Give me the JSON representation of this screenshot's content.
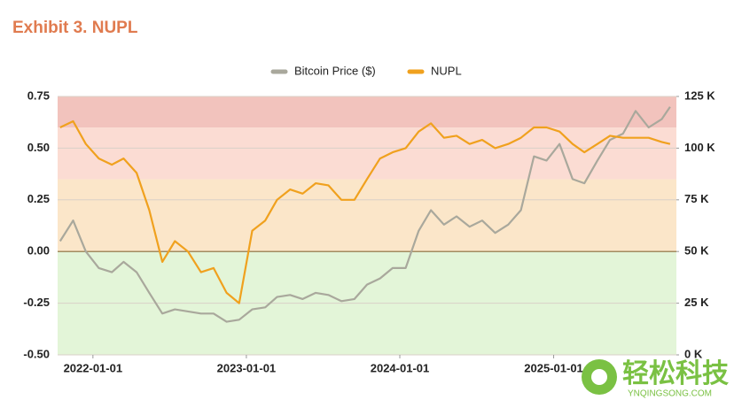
{
  "chart_data": {
    "type": "line",
    "title": "Exhibit 3. NUPL",
    "x": [
      "2021-10-15",
      "2021-11-15",
      "2021-12-15",
      "2022-01-15",
      "2022-02-15",
      "2022-03-15",
      "2022-04-15",
      "2022-05-15",
      "2022-06-15",
      "2022-07-15",
      "2022-08-15",
      "2022-09-15",
      "2022-10-15",
      "2022-11-15",
      "2022-12-15",
      "2023-01-15",
      "2023-02-15",
      "2023-03-15",
      "2023-04-15",
      "2023-05-15",
      "2023-06-15",
      "2023-07-15",
      "2023-08-15",
      "2023-09-15",
      "2023-10-15",
      "2023-11-15",
      "2023-12-15",
      "2024-01-15",
      "2024-02-15",
      "2024-03-15",
      "2024-04-15",
      "2024-05-15",
      "2024-06-15",
      "2024-07-15",
      "2024-08-15",
      "2024-09-15",
      "2024-10-15",
      "2024-11-15",
      "2024-12-15",
      "2025-01-15",
      "2025-02-15",
      "2025-03-15",
      "2025-04-15",
      "2025-05-15",
      "2025-06-15",
      "2025-07-15",
      "2025-08-15",
      "2025-09-15",
      "2025-10-05"
    ],
    "series": [
      {
        "name": "Bitcoin Price ($)",
        "color": "#a9a89c",
        "axis": "y2",
        "values": [
          55000,
          65000,
          50000,
          42000,
          40000,
          45000,
          40000,
          30000,
          20000,
          22000,
          21000,
          20000,
          20000,
          16000,
          17000,
          22000,
          23000,
          28000,
          29000,
          27000,
          30000,
          29000,
          26000,
          27000,
          34000,
          37000,
          42000,
          42000,
          60000,
          70000,
          63000,
          67000,
          62000,
          65000,
          59000,
          63000,
          70000,
          96000,
          94000,
          102000,
          85000,
          83000,
          94000,
          104000,
          107000,
          118000,
          110000,
          114000,
          120000
        ]
      },
      {
        "name": "NUPL",
        "color": "#f0a11e",
        "values": [
          0.6,
          0.63,
          0.52,
          0.45,
          0.42,
          0.45,
          0.38,
          0.2,
          -0.05,
          0.05,
          0,
          -0.1,
          -0.08,
          -0.2,
          -0.25,
          0.1,
          0.15,
          0.25,
          0.3,
          0.28,
          0.33,
          0.32,
          0.25,
          0.25,
          0.35,
          0.45,
          0.48,
          0.5,
          0.58,
          0.62,
          0.55,
          0.56,
          0.52,
          0.54,
          0.5,
          0.52,
          0.55,
          0.6,
          0.6,
          0.58,
          0.52,
          0.48,
          0.52,
          0.56,
          0.55,
          0.55,
          0.55,
          0.53,
          0.52
        ]
      }
    ],
    "xlim": [
      "2021-10-09",
      "2025-10-20"
    ],
    "xticks": [
      "2022-01-01",
      "2023-01-01",
      "2024-01-01",
      "2025-01-01"
    ],
    "ylim": [
      -0.5,
      0.75
    ],
    "yticks": [
      {
        "value": -0.5,
        "label": "-0.50"
      },
      -0.25,
      {
        "value": 0,
        "label": "0.00"
      },
      0.25,
      {
        "value": 0.5,
        "label": "0.50"
      },
      0.75
    ],
    "y2lim": [
      0,
      125000
    ],
    "y2ticks": [
      {
        "value": 0,
        "label": "0 K"
      },
      {
        "value": 25000,
        "label": "25 K"
      },
      {
        "value": 50000,
        "label": "50 K"
      },
      {
        "value": 75000,
        "label": "75 K"
      },
      {
        "value": 100000,
        "label": "100 K"
      },
      {
        "value": 125000,
        "label": "125 K"
      }
    ],
    "bands": [
      {
        "from": 0.6,
        "to": 0.75,
        "color": "#f2c3bd"
      },
      {
        "from": 0.35,
        "to": 0.6,
        "color": "#fbdcd3"
      },
      {
        "from": 0,
        "to": 0.35,
        "color": "#fbe6c9"
      },
      {
        "from": -0.5,
        "to": 0,
        "color": "#e3f5d8"
      }
    ],
    "grid": true,
    "legend": "top",
    "watermark": "轻松科技",
    "watermark_url": "YNQINGSONG.COM"
  }
}
